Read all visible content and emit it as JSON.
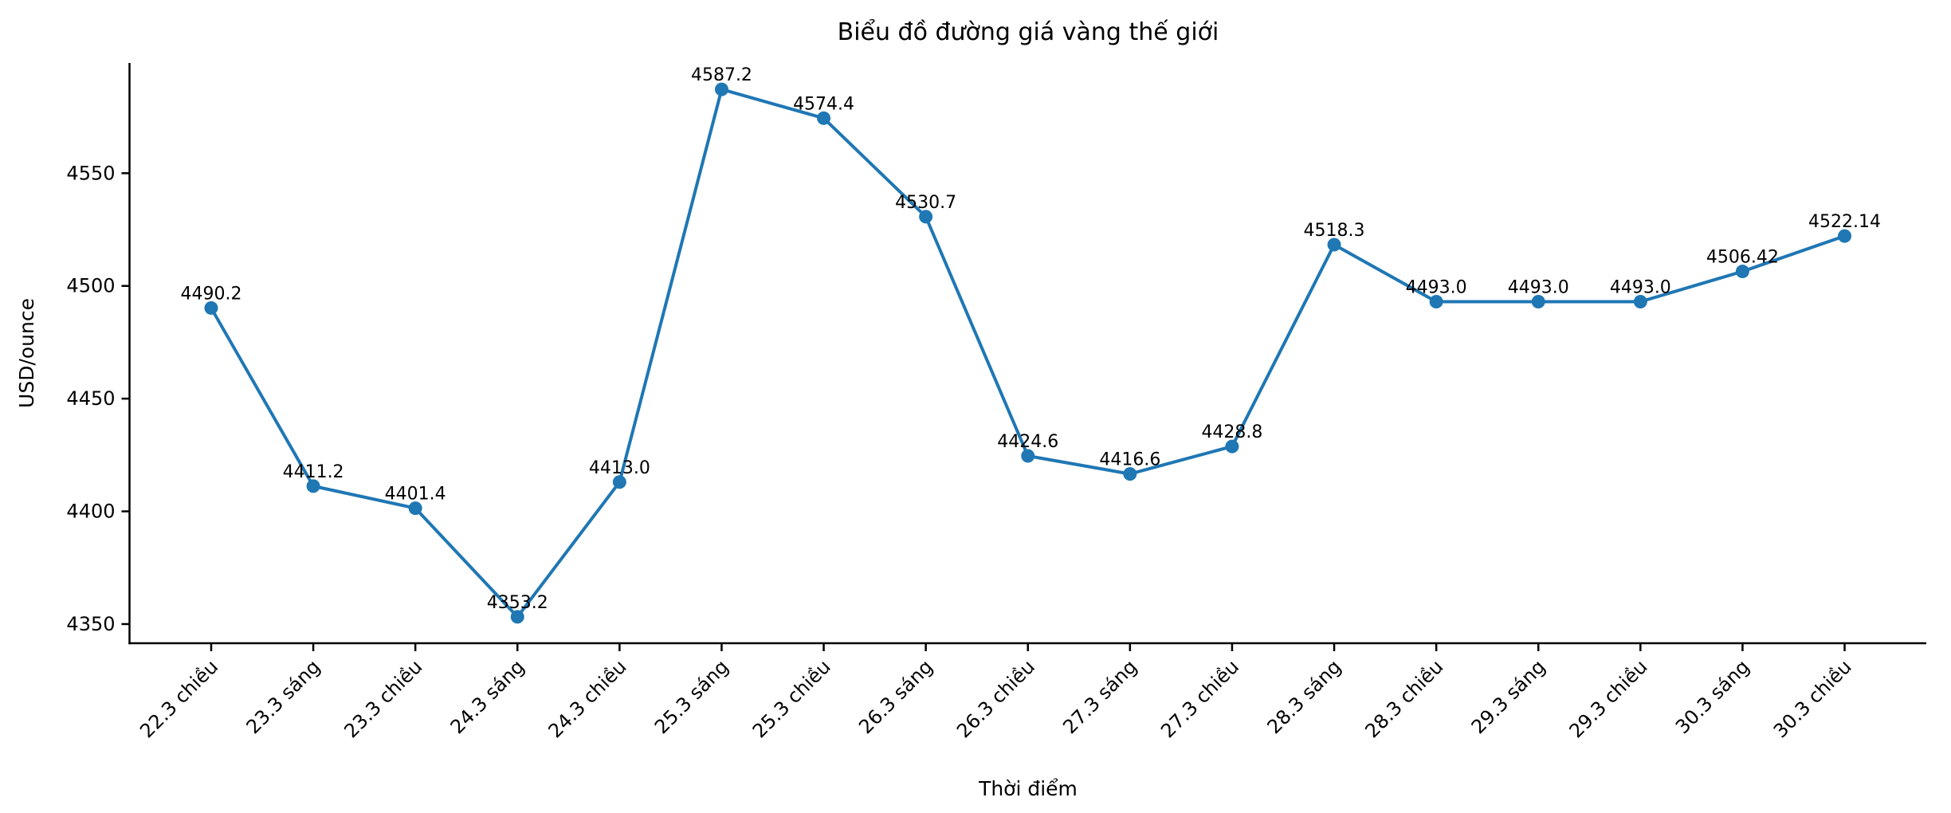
{
  "figure": {
    "background": "#ffffff",
    "text_color": "#000000"
  },
  "chart_data": {
    "type": "line",
    "title": "Biểu đồ đường giá vàng thế giới",
    "xlabel": "Thời điểm",
    "ylabel": "USD/ounce",
    "categories": [
      "22.3 chiều",
      "23.3 sáng",
      "23.3 chiều",
      "24.3 sáng",
      "24.3 chiều",
      "25.3 sáng",
      "25.3 chiều",
      "26.3 sáng",
      "26.3 chiều",
      "27.3 sáng",
      "27.3 chiều",
      "28.3 sáng",
      "28.3 chiều",
      "29.3 sáng",
      "29.3 chiều",
      "30.3 sáng",
      "30.3 chiều"
    ],
    "values": [
      4490.2,
      4411.2,
      4401.4,
      4353.2,
      4413.0,
      4587.2,
      4574.4,
      4530.7,
      4424.6,
      4416.6,
      4428.8,
      4518.3,
      4493.0,
      4493.0,
      4493.0,
      4506.42,
      4522.14
    ],
    "point_labels": [
      "4490.2",
      "4411.2",
      "4401.4",
      "4353.2",
      "4413.0",
      "4587.2",
      "4574.4",
      "4530.7",
      "4424.6",
      "4416.6",
      "4428.8",
      "4518.3",
      "4493.0",
      "4493.0",
      "4493.0",
      "4506.42",
      "4522.14"
    ],
    "y_ticks": [
      4350,
      4400,
      4450,
      4500,
      4550
    ],
    "ylim": [
      4341.5,
      4598.9
    ],
    "x_tick_rotation_deg": 45,
    "grid": false,
    "legend": "none",
    "line_color": "#1f77b4",
    "marker": "circle",
    "marker_color": "#1f77b4",
    "axis_color": "#000000"
  }
}
